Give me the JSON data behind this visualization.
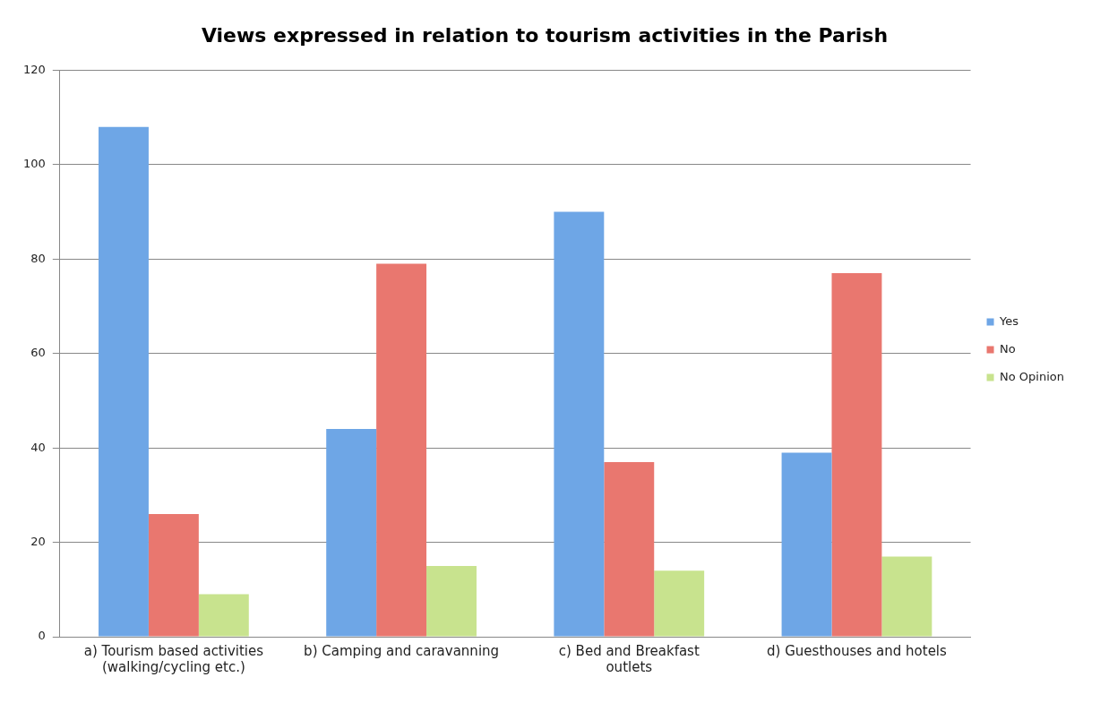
{
  "chart_data": {
    "type": "bar",
    "title": "Views expressed in relation to tourism activities in the Parish",
    "categories": [
      "a) Tourism based activities (walking/cycling etc.)",
      "b) Camping and caravanning",
      "c) Bed and Breakfast outlets",
      "d) Guesthouses and hotels"
    ],
    "series": [
      {
        "name": "Yes",
        "color": "#6ea6e6",
        "values": [
          108,
          44,
          90,
          39
        ]
      },
      {
        "name": "No",
        "color": "#e9776f",
        "values": [
          26,
          79,
          37,
          77
        ]
      },
      {
        "name": "No Opinion",
        "color": "#c8e38e",
        "values": [
          9,
          15,
          14,
          17
        ]
      }
    ],
    "ylim": [
      0,
      120
    ],
    "yticks": [
      0,
      20,
      40,
      60,
      80,
      100,
      120
    ],
    "grid": "y",
    "legend": "right"
  }
}
